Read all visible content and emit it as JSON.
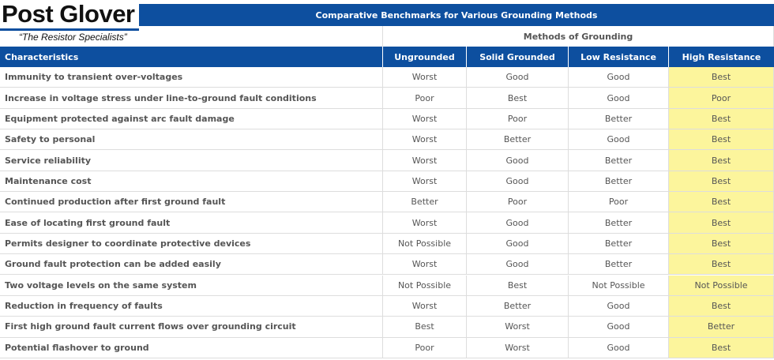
{
  "header": {
    "logo": "Post Glover",
    "tagline": "“The Resistor Specialists”"
  },
  "title": "Comparative Benchmarks for Various Grounding Methods",
  "group_header": "Methods of Grounding",
  "columns": [
    "Characteristics",
    "Ungrounded",
    "Solid Grounded",
    "Low Resistance",
    "High Resistance"
  ],
  "rows": [
    [
      "Immunity to transient over-voltages",
      "Worst",
      "Good",
      "Good",
      "Best"
    ],
    [
      "Increase in voltage stress under line-to-ground fault conditions",
      "Poor",
      "Best",
      "Good",
      "Poor"
    ],
    [
      "Equipment protected against arc fault damage",
      "Worst",
      "Poor",
      "Better",
      "Best"
    ],
    [
      "Safety to personal",
      "Worst",
      "Better",
      "Good",
      "Best"
    ],
    [
      "Service reliability",
      "Worst",
      "Good",
      "Better",
      "Best"
    ],
    [
      "Maintenance cost",
      "Worst",
      "Good",
      "Better",
      "Best"
    ],
    [
      "Continued production after first ground fault",
      "Better",
      "Poor",
      "Poor",
      "Best"
    ],
    [
      "Ease of locating first ground fault",
      "Worst",
      "Good",
      "Better",
      "Best"
    ],
    [
      "Permits designer to coordinate protective devices",
      "Not Possible",
      "Good",
      "Better",
      "Best"
    ],
    [
      "Ground fault protection can be added easily",
      "Worst",
      "Good",
      "Better",
      "Best"
    ],
    [
      "Two voltage levels on the same system",
      "Not Possible",
      "Best",
      "Not Possible",
      "Not Possible"
    ],
    [
      "Reduction in frequency of faults",
      "Worst",
      "Better",
      "Good",
      "Best"
    ],
    [
      "First high ground fault current flows over grounding circuit",
      "Best",
      "Worst",
      "Good",
      "Better"
    ],
    [
      "Potential flashover to ground",
      "Poor",
      "Worst",
      "Good",
      "Best"
    ]
  ]
}
